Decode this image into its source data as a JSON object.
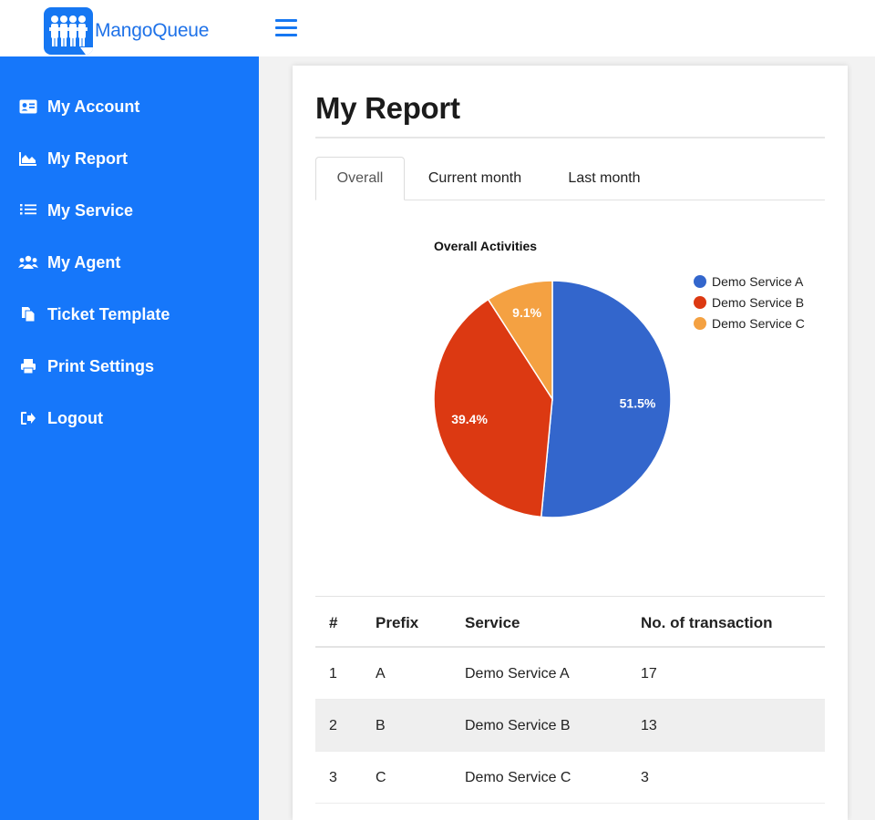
{
  "app": {
    "name": "MangoQueue"
  },
  "sidebar": {
    "items": [
      {
        "label": "My Account",
        "icon": "id-card-icon"
      },
      {
        "label": "My Report",
        "icon": "area-chart-icon"
      },
      {
        "label": "My Service",
        "icon": "list-icon"
      },
      {
        "label": "My Agent",
        "icon": "users-icon"
      },
      {
        "label": "Ticket Template",
        "icon": "copy-icon"
      },
      {
        "label": "Print Settings",
        "icon": "printer-icon"
      },
      {
        "label": "Logout",
        "icon": "logout-icon"
      }
    ]
  },
  "main": {
    "title": "My Report",
    "tabs": [
      {
        "label": "Overall",
        "active": true
      },
      {
        "label": "Current month",
        "active": false
      },
      {
        "label": "Last month",
        "active": false
      }
    ]
  },
  "chart_data": {
    "type": "pie",
    "title": "Overall Activities",
    "legend_position": "right",
    "categories": [
      "Demo Service A",
      "Demo Service B",
      "Demo Service C"
    ],
    "values": [
      51.5,
      39.4,
      9.1
    ],
    "labels": [
      "51.5%",
      "39.4%",
      "9.1%"
    ],
    "colors": [
      "#3366cc",
      "#dc3912",
      "#f4a142"
    ]
  },
  "table": {
    "headers": [
      "#",
      "Prefix",
      "Service",
      "No. of transaction"
    ],
    "rows": [
      [
        "1",
        "A",
        "Demo Service A",
        "17"
      ],
      [
        "2",
        "B",
        "Demo Service B",
        "13"
      ],
      [
        "3",
        "C",
        "Demo Service C",
        "3"
      ]
    ]
  }
}
